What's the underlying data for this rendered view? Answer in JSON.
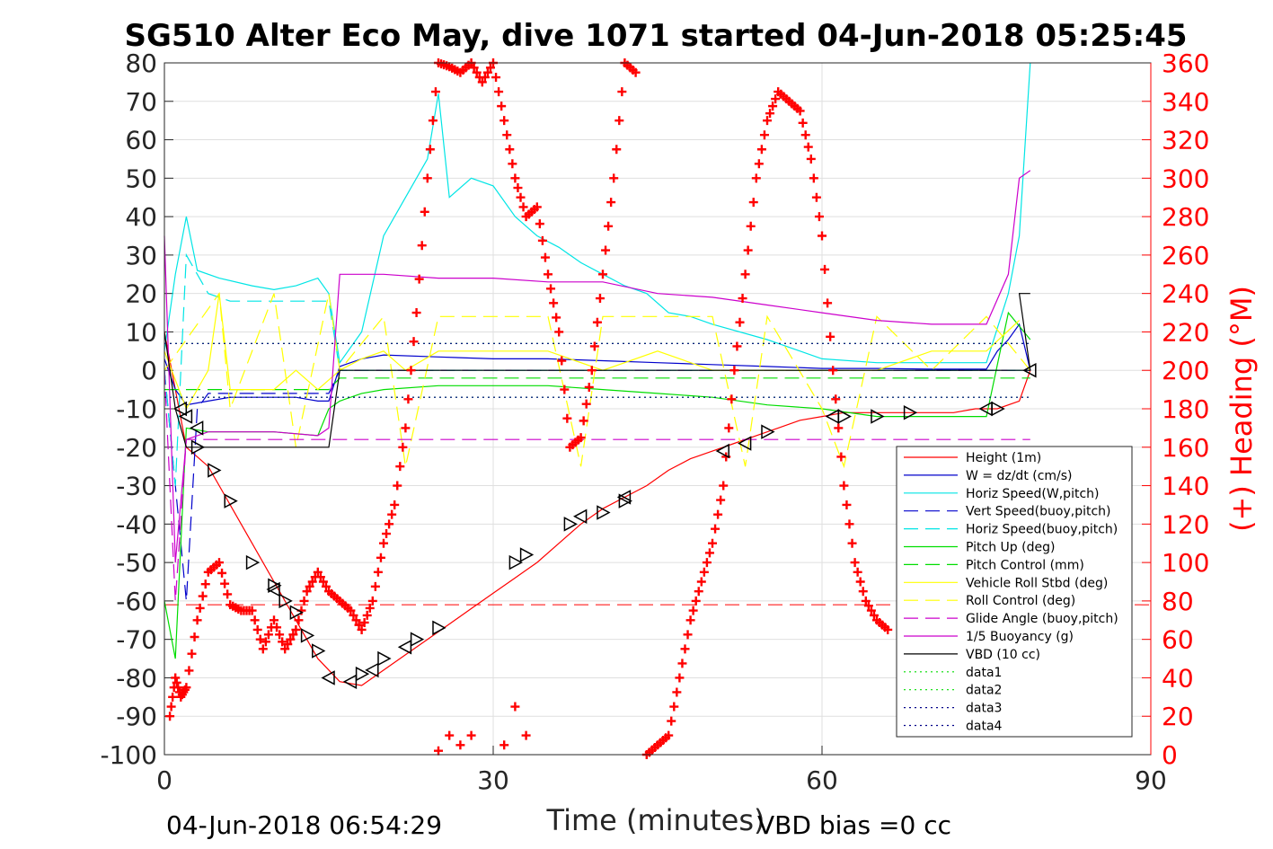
{
  "chart_data": {
    "type": "line",
    "title": "SG510 Alter Eco May, dive 1071 started 04-Jun-2018 05:25:45",
    "xlabel": "Time (minutes)",
    "ylabel_right": "(+) Heading (°M)",
    "xlim": [
      0,
      90
    ],
    "ylim_left": [
      -100,
      80
    ],
    "ylim_right": [
      0,
      360
    ],
    "x_ticks": [
      "0",
      "30",
      "60",
      "90"
    ],
    "y_ticks_left": [
      "80",
      "70",
      "60",
      "50",
      "40",
      "30",
      "20",
      "10",
      "0",
      "-10",
      "-20",
      "-30",
      "-40",
      "-50",
      "-60",
      "-70",
      "-80",
      "-90",
      "-100"
    ],
    "y_ticks_right": [
      "360",
      "340",
      "320",
      "300",
      "280",
      "260",
      "240",
      "220",
      "200",
      "180",
      "160",
      "140",
      "120",
      "100",
      "80",
      "60",
      "40",
      "20",
      "0"
    ],
    "grid": true,
    "legend_position": "bottom-right",
    "footer_left": "04-Jun-2018 06:54:29",
    "footer_right": "VBD bias =0 cc",
    "series": [
      {
        "name": "Height (1m)",
        "color": "#ff0000",
        "style": "solid",
        "x": [
          0,
          2,
          4,
          6,
          8,
          10,
          12,
          14,
          16,
          18,
          20,
          22,
          24,
          26,
          28,
          30,
          32,
          34,
          36,
          38,
          40,
          42,
          44,
          46,
          48,
          50,
          52,
          54,
          56,
          58,
          60,
          62,
          64,
          66,
          68,
          70,
          72,
          74,
          76,
          78,
          79
        ],
        "y": [
          10,
          -20,
          -25,
          -35,
          -45,
          -55,
          -65,
          -75,
          -81,
          -82,
          -78,
          -74,
          -70,
          -66,
          -62,
          -58,
          -54,
          -50,
          -45,
          -40,
          -36,
          -33,
          -30,
          -26,
          -23,
          -21,
          -19,
          -17,
          -15,
          -13,
          -12,
          -11,
          -11,
          -11,
          -11,
          -11,
          -11,
          -10,
          -10,
          -8,
          0
        ]
      },
      {
        "name": "W = dz/dt (cm/s)",
        "color": "#0000cc",
        "style": "solid",
        "x": [
          0,
          1,
          2,
          4,
          6,
          8,
          10,
          12,
          14,
          15,
          16,
          18,
          20,
          25,
          30,
          35,
          40,
          45,
          50,
          55,
          60,
          65,
          70,
          75,
          76,
          77,
          78,
          79
        ],
        "y": [
          3,
          -5,
          -9,
          -8,
          -7,
          -7,
          -7,
          -7,
          -8,
          -8,
          1,
          3,
          4,
          3.5,
          3,
          3,
          2.5,
          2,
          1.5,
          1,
          0.5,
          0.5,
          0.3,
          0.3,
          5,
          8,
          12,
          0
        ]
      },
      {
        "name": "Horiz Speed(W,pitch)",
        "color": "#00e5e5",
        "style": "solid",
        "x": [
          0,
          1,
          2,
          3,
          5,
          8,
          10,
          12,
          14,
          15,
          16,
          18,
          20,
          22,
          24,
          25,
          26,
          28,
          30,
          32,
          34,
          36,
          38,
          40,
          42,
          44,
          46,
          48,
          50,
          55,
          60,
          65,
          70,
          75,
          77,
          78,
          79
        ],
        "y": [
          5,
          25,
          40,
          26,
          24,
          22,
          21,
          22,
          24,
          20,
          2,
          10,
          35,
          45,
          55,
          72,
          45,
          50,
          48,
          40,
          35,
          32,
          28,
          25,
          22,
          20,
          15,
          14,
          12,
          8,
          3,
          2,
          2,
          2,
          20,
          35,
          80
        ]
      },
      {
        "name": "Vert Speed(buoy,pitch)",
        "color": "#0000cc",
        "style": "dashed",
        "x": [
          0,
          1,
          2,
          3,
          4,
          14,
          15,
          16,
          79
        ],
        "y": [
          0,
          -30,
          -60,
          -10,
          -6,
          -6,
          -6,
          0,
          0
        ]
      },
      {
        "name": "Horiz Speed(buoy,pitch)",
        "color": "#00e5e5",
        "style": "dashed",
        "x": [
          0,
          1,
          2,
          4,
          6,
          10,
          12,
          14,
          15,
          16,
          79
        ],
        "y": [
          0,
          -30,
          30,
          20,
          18,
          18,
          18,
          18,
          18,
          0,
          0
        ]
      },
      {
        "name": "Pitch Up (deg)",
        "color": "#00dd00",
        "style": "solid",
        "x": [
          0,
          1,
          2,
          4,
          6,
          10,
          14,
          15,
          16,
          18,
          20,
          25,
          30,
          35,
          40,
          45,
          50,
          55,
          60,
          65,
          70,
          75,
          77,
          79
        ],
        "y": [
          -60,
          -75,
          -15,
          -16,
          -16,
          -16,
          -17,
          -10,
          -8,
          -6,
          -5,
          -4,
          -4,
          -4,
          -5,
          -6,
          -7,
          -9,
          -10,
          -12,
          -12,
          -12,
          15,
          8
        ]
      },
      {
        "name": "Pitch Control (mm)",
        "color": "#00dd00",
        "style": "dashed",
        "x": [
          0,
          1,
          2,
          15,
          16,
          79
        ],
        "y": [
          -5,
          -5,
          -5,
          -5,
          -2,
          -2
        ]
      },
      {
        "name": "Vehicle Roll Stbd (deg)",
        "color": "#ffff00",
        "style": "solid",
        "x": [
          0,
          2,
          4,
          5,
          6,
          8,
          10,
          12,
          14,
          16,
          18,
          20,
          22,
          25,
          30,
          35,
          40,
          45,
          50,
          55,
          60,
          65,
          70,
          75,
          78
        ],
        "y": [
          5,
          -10,
          0,
          20,
          -5,
          -5,
          -5,
          0,
          -5,
          0,
          3,
          5,
          0,
          5,
          5,
          5,
          0,
          5,
          0,
          0,
          0,
          0,
          5,
          5,
          13
        ]
      },
      {
        "name": "Roll Control (deg)",
        "color": "#ffff00",
        "style": "dashed",
        "x": [
          0,
          5,
          6,
          10,
          12,
          15,
          16,
          20,
          22,
          25,
          30,
          35,
          38,
          40,
          42,
          45,
          50,
          53,
          55,
          60,
          62,
          65,
          70,
          75,
          79
        ],
        "y": [
          0,
          20,
          -10,
          20,
          -20,
          20,
          0,
          14,
          -25,
          14,
          14,
          14,
          -25,
          14,
          14,
          14,
          14,
          -25,
          14,
          -10,
          -25,
          14,
          0,
          14,
          0
        ]
      },
      {
        "name": "Glide Angle (buoy,pitch)",
        "color": "#cc00cc",
        "style": "dashed",
        "x": [
          0,
          1,
          2,
          3,
          79
        ],
        "y": [
          0,
          -60,
          -18,
          -18,
          -18
        ]
      },
      {
        "name": "1/5 Buoyancy (g)",
        "color": "#cc00cc",
        "style": "solid",
        "x": [
          0,
          1,
          2,
          4,
          6,
          10,
          14,
          15,
          16,
          20,
          25,
          30,
          35,
          40,
          45,
          50,
          55,
          60,
          65,
          70,
          75,
          77,
          78,
          79
        ],
        "y": [
          35,
          -50,
          -18,
          -16,
          -16,
          -16,
          -17,
          -15,
          25,
          25,
          24,
          24,
          23,
          23,
          20,
          19,
          17,
          15,
          13,
          12,
          12,
          25,
          50,
          52
        ]
      },
      {
        "name": "VBD (10 cc)",
        "color": "#000000",
        "style": "solid",
        "x": [
          0,
          1,
          2,
          15,
          16,
          79,
          78,
          79
        ],
        "y": [
          10,
          -10,
          -20,
          -20,
          0,
          0,
          20,
          20
        ]
      },
      {
        "name": "data1",
        "color": "#00dd00",
        "style": "dotted",
        "x": [
          0,
          79
        ],
        "y": [
          7,
          7
        ]
      },
      {
        "name": "data2",
        "color": "#00dd00",
        "style": "dotted",
        "x": [
          0,
          79
        ],
        "y": [
          -7,
          -7
        ]
      },
      {
        "name": "data3",
        "color": "#000088",
        "style": "dotted",
        "x": [
          0,
          79
        ],
        "y": [
          7,
          7
        ]
      },
      {
        "name": "data4",
        "color": "#000088",
        "style": "dotted",
        "x": [
          0,
          79
        ],
        "y": [
          -7,
          -7
        ]
      }
    ],
    "heading_series": {
      "color": "#ff0000",
      "marker": "+",
      "x": [
        0.5,
        1,
        1.5,
        2,
        3,
        4,
        5,
        6,
        7,
        8,
        9,
        10,
        11,
        12,
        13,
        14,
        15,
        16,
        17,
        18,
        19,
        20,
        21,
        22,
        23,
        24,
        25,
        26,
        27,
        28,
        29,
        30,
        31,
        32,
        33,
        34,
        35,
        36,
        37,
        38,
        39,
        40,
        41,
        42,
        43,
        44,
        45,
        46,
        47,
        48,
        49,
        50,
        51,
        52,
        53,
        54,
        55,
        56,
        57,
        58,
        59,
        60,
        61,
        62,
        63,
        64,
        65,
        66
      ],
      "y": [
        20,
        40,
        30,
        35,
        70,
        95,
        100,
        78,
        75,
        75,
        55,
        70,
        55,
        65,
        85,
        95,
        85,
        80,
        75,
        65,
        80,
        110,
        130,
        170,
        230,
        300,
        360,
        358,
        355,
        360,
        350,
        360,
        330,
        300,
        280,
        285,
        250,
        220,
        160,
        165,
        200,
        250,
        300,
        360,
        355,
        0,
        5,
        10,
        40,
        70,
        90,
        110,
        140,
        200,
        250,
        300,
        330,
        345,
        340,
        335,
        310,
        270,
        200,
        140,
        100,
        80,
        70,
        65
      ]
    },
    "heading_ylim": [
      0,
      360
    ],
    "heading_extra_points": {
      "x": [
        25,
        26,
        27,
        28,
        31,
        32,
        33
      ],
      "y": [
        2,
        10,
        5,
        10,
        5,
        25,
        10
      ]
    },
    "reference_line": {
      "color": "#ff0000",
      "style": "dashed",
      "y": -61
    },
    "apogee_triangles": {
      "right": {
        "x": [
          3,
          4.5,
          6,
          8,
          10,
          11,
          12,
          13,
          14,
          18,
          20,
          23,
          25,
          32,
          33,
          37,
          40,
          42,
          55,
          62,
          65,
          68,
          76
        ],
        "y": [
          -20,
          -26,
          -34,
          -50,
          -56,
          -60,
          -63,
          -69,
          -73,
          -79,
          -75,
          -70,
          -67,
          -50,
          -48,
          -40,
          -37,
          -34,
          -16,
          -12,
          -12,
          -11,
          -10
        ]
      },
      "left": {
        "x": [
          1.5,
          2,
          3,
          10,
          15,
          17,
          19,
          22,
          38,
          42,
          51,
          53,
          61,
          75,
          79
        ],
        "y": [
          -10,
          -12,
          -15,
          -57,
          -80,
          -81,
          -78,
          -72,
          -38,
          -33,
          -21,
          -19,
          -12,
          -10,
          0
        ]
      }
    }
  }
}
